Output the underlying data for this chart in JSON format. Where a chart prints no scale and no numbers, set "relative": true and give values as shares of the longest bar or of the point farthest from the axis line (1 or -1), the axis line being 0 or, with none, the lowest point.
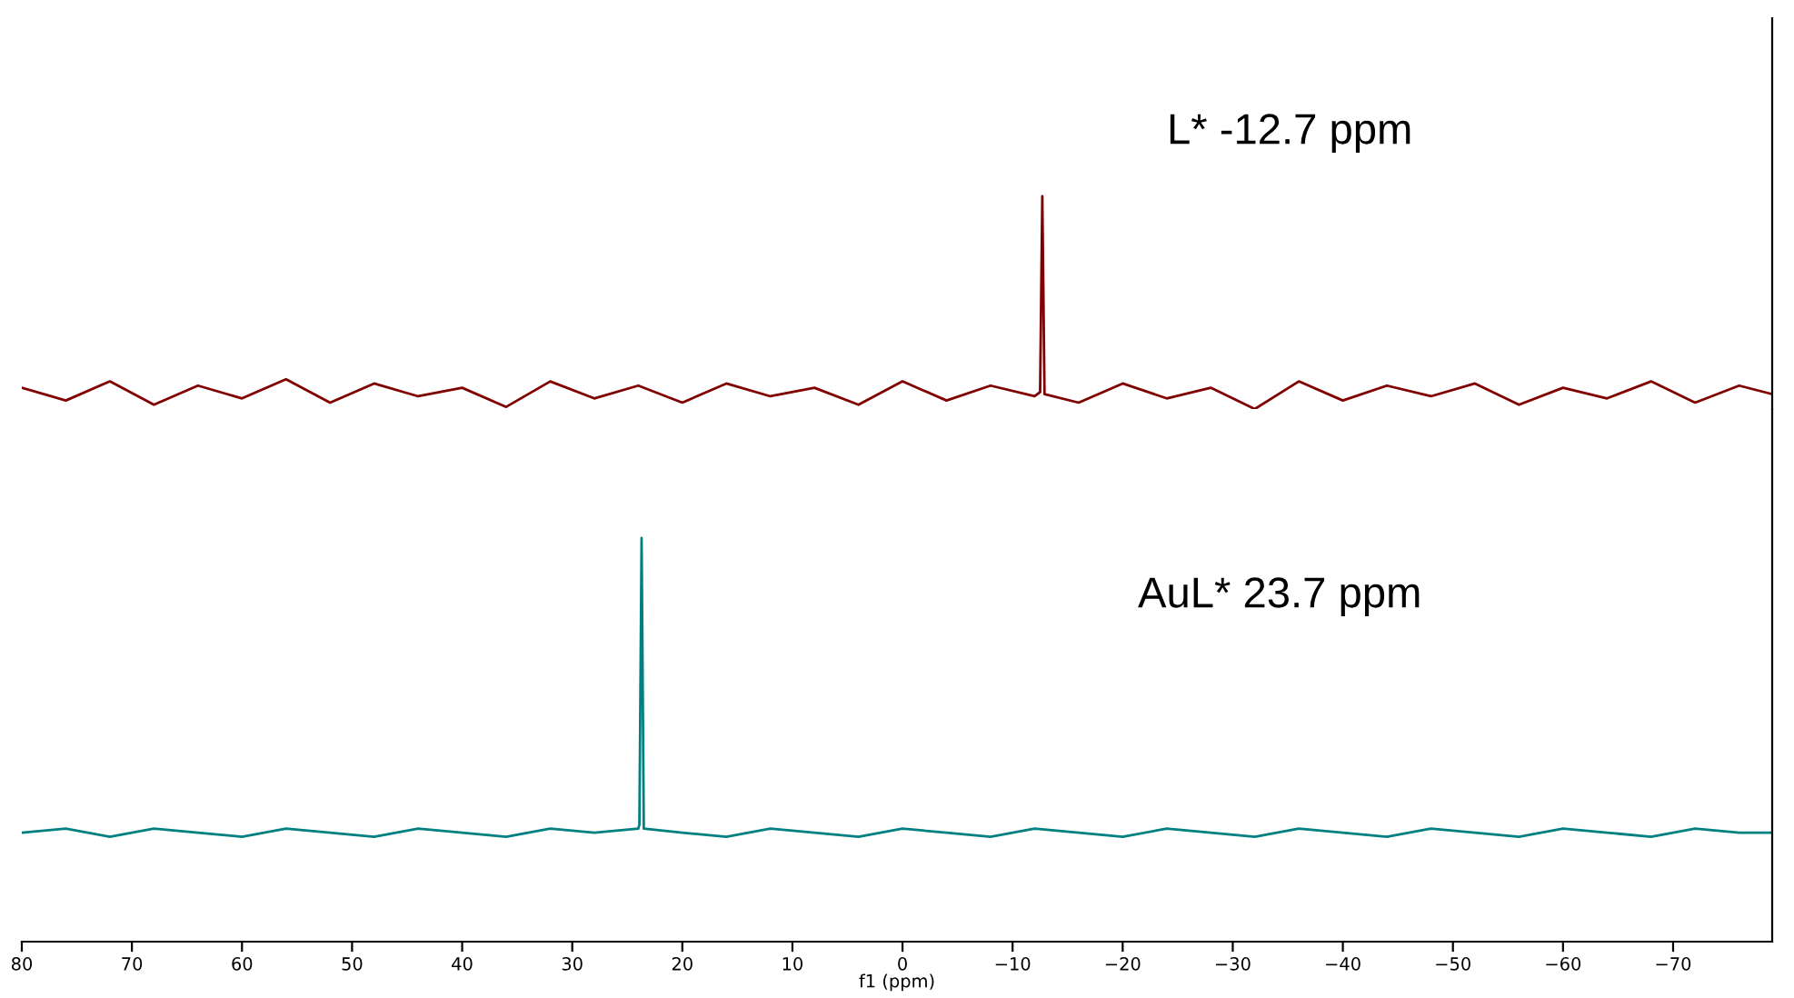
{
  "chart_data": [
    {
      "type": "line",
      "relative": true,
      "xlim": [
        80,
        -79
      ],
      "tick_labels": false,
      "grid": false,
      "annotations": [
        "L* -12.7 ppm"
      ],
      "x": [
        80,
        76,
        72,
        68,
        64,
        60,
        56,
        52,
        48,
        44,
        40,
        36,
        32,
        28,
        24,
        20,
        16,
        12,
        8,
        4,
        0,
        -4,
        -8,
        -12,
        -12.5,
        -12.7,
        -12.9,
        -16,
        -20,
        -24,
        -28,
        -32,
        -36,
        -40,
        -44,
        -48,
        -52,
        -56,
        -60,
        -64,
        -68,
        -72,
        -76,
        -79
      ],
      "series": [
        {
          "color": "#800000",
          "values": [
            0.1,
            0.04,
            0.13,
            0.02,
            0.11,
            0.05,
            0.14,
            0.03,
            0.12,
            0.06,
            0.1,
            0.01,
            0.13,
            0.05,
            0.11,
            0.03,
            0.12,
            0.06,
            0.1,
            0.02,
            0.13,
            0.04,
            0.11,
            0.06,
            0.08,
            1,
            0.07,
            0.03,
            0.12,
            0.05,
            0.1,
            0.0,
            0.13,
            0.04,
            0.11,
            0.06,
            0.12,
            0.02,
            0.1,
            0.05,
            0.13,
            0.03,
            0.11,
            0.07
          ]
        }
      ]
    },
    {
      "type": "line",
      "relative": true,
      "xlim": [
        80,
        -79
      ],
      "tick_labels": "x",
      "grid": false,
      "xticks": [
        80,
        70,
        60,
        50,
        40,
        30,
        20,
        10,
        0,
        {
          "value": -10,
          "label": "−10"
        },
        {
          "value": -20,
          "label": "−20"
        },
        {
          "value": -30,
          "label": "−30"
        },
        {
          "value": -40,
          "label": "−40"
        },
        {
          "value": -50,
          "label": "−50"
        },
        {
          "value": -60,
          "label": "−60"
        },
        {
          "value": -70,
          "label": "−70"
        }
      ],
      "xlabel": "f1 (ppm)",
      "annotations": [
        "AuL* 23.7 ppm"
      ],
      "x": [
        80,
        76,
        72,
        68,
        64,
        60,
        56,
        52,
        48,
        44,
        40,
        36,
        32,
        28,
        24,
        23.9,
        23.7,
        23.5,
        20,
        16,
        12,
        8,
        4,
        0,
        -4,
        -8,
        -12,
        -16,
        -20,
        -24,
        -28,
        -32,
        -36,
        -40,
        -44,
        -48,
        -52,
        -56,
        -60,
        -64,
        -68,
        -72,
        -76,
        -79
      ],
      "series": [
        {
          "color": "#008080",
          "values": [
            0.27,
            0.28,
            0.26,
            0.28,
            0.27,
            0.26,
            0.28,
            0.27,
            0.26,
            0.28,
            0.27,
            0.26,
            0.28,
            0.27,
            0.28,
            0.29,
            1,
            0.28,
            0.27,
            0.26,
            0.28,
            0.27,
            0.26,
            0.28,
            0.27,
            0.26,
            0.28,
            0.27,
            0.26,
            0.28,
            0.27,
            0.26,
            0.28,
            0.27,
            0.26,
            0.28,
            0.27,
            0.26,
            0.28,
            0.27,
            0.26,
            0.28,
            0.27,
            0.27
          ]
        }
      ]
    }
  ]
}
